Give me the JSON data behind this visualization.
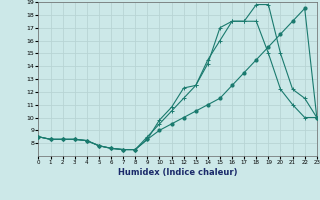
{
  "xlabel": "Humidex (Indice chaleur)",
  "bg_color": "#cce8e8",
  "grid_color": "#b8d4d4",
  "line_color": "#1a7a6e",
  "xlim": [
    0,
    23
  ],
  "ylim": [
    7,
    19
  ],
  "series1_x": [
    0,
    1,
    2,
    3,
    4,
    5,
    6,
    7,
    8,
    9,
    10,
    11,
    12,
    13,
    14,
    15,
    16,
    17,
    18,
    19,
    20,
    21,
    22,
    23
  ],
  "series1_y": [
    8.5,
    8.3,
    8.3,
    8.3,
    8.2,
    7.8,
    7.6,
    7.5,
    7.5,
    8.3,
    9.0,
    9.5,
    10.0,
    10.5,
    11.0,
    11.5,
    12.5,
    13.5,
    14.5,
    15.5,
    16.5,
    17.5,
    18.5,
    10.0
  ],
  "series2_x": [
    0,
    1,
    2,
    3,
    4,
    5,
    6,
    7,
    8,
    9,
    10,
    11,
    12,
    13,
    14,
    15,
    16,
    17,
    18,
    19,
    20,
    21,
    22,
    23
  ],
  "series2_y": [
    8.5,
    8.3,
    8.3,
    8.3,
    8.2,
    7.8,
    7.6,
    7.5,
    7.5,
    8.3,
    9.8,
    10.8,
    12.3,
    12.5,
    14.2,
    17.0,
    17.5,
    17.5,
    18.8,
    18.8,
    15.0,
    12.2,
    11.5,
    10.0
  ],
  "series3_x": [
    0,
    1,
    2,
    3,
    4,
    5,
    6,
    7,
    8,
    9,
    10,
    11,
    12,
    13,
    14,
    15,
    16,
    17,
    18,
    19,
    20,
    21,
    22,
    23
  ],
  "series3_y": [
    8.5,
    8.3,
    8.3,
    8.3,
    8.2,
    7.8,
    7.6,
    7.5,
    7.5,
    8.5,
    9.5,
    10.5,
    11.5,
    12.5,
    14.5,
    16.0,
    17.5,
    17.5,
    17.5,
    15.0,
    12.2,
    11.0,
    10.0,
    10.0
  ]
}
